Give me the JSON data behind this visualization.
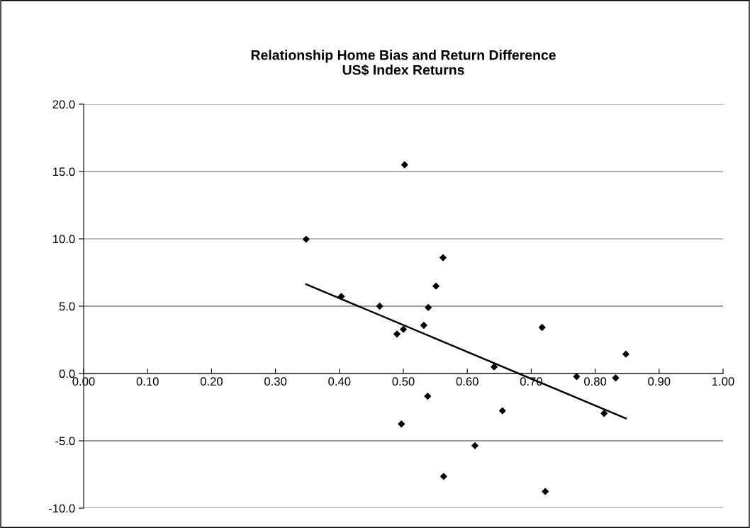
{
  "chart_data": {
    "type": "scatter",
    "title": "Relationship Home Bias and Return Difference\nUS$ Index Returns",
    "series": [
      {
        "color": "#000000",
        "marker": "diamond",
        "x": [
          0.502,
          0.348,
          0.562,
          0.551,
          0.403,
          0.463,
          0.539,
          0.532,
          0.5,
          0.49,
          0.538,
          0.497,
          0.563,
          0.717,
          0.848,
          0.642,
          0.771,
          0.832,
          0.655,
          0.814,
          0.612,
          0.722
        ],
        "values": [
          15.5,
          9.97,
          8.6,
          6.49,
          5.72,
          5.0,
          4.9,
          3.58,
          3.28,
          2.93,
          -1.69,
          -3.75,
          -7.64,
          3.42,
          1.44,
          0.49,
          -0.23,
          -0.33,
          -2.77,
          -2.96,
          -5.36,
          -8.76
        ]
      },
      {
        "type": "line",
        "color": "#000000",
        "x": [
          0.348,
          0.848
        ],
        "values": [
          6.63,
          -3.34
        ]
      }
    ],
    "xlim": [
      0,
      1
    ],
    "xticks": [
      {
        "value": 0,
        "label": "0.00"
      },
      {
        "value": 0.1,
        "label": "0.10"
      },
      {
        "value": 0.2,
        "label": "0.20"
      },
      {
        "value": 0.3,
        "label": "0.30"
      },
      {
        "value": 0.4,
        "label": "0.40"
      },
      {
        "value": 0.5,
        "label": "0.50"
      },
      {
        "value": 0.6,
        "label": "0.60"
      },
      {
        "value": 0.7,
        "label": "0.70"
      },
      {
        "value": 0.8,
        "label": "0.80"
      },
      {
        "value": 0.9,
        "label": "0.90"
      },
      {
        "value": 1,
        "label": "1.00"
      }
    ],
    "ylim": [
      -10,
      20
    ],
    "yticks": [
      {
        "value": -10,
        "label": "-10.0"
      },
      {
        "value": -5,
        "label": "-5.0"
      },
      {
        "value": 0,
        "label": "0.0"
      },
      {
        "value": 5,
        "label": "5.0"
      },
      {
        "value": 10,
        "label": "10.0"
      },
      {
        "value": 15,
        "label": "15.0"
      },
      {
        "value": 20,
        "label": "20.0"
      }
    ],
    "grid": "y"
  }
}
